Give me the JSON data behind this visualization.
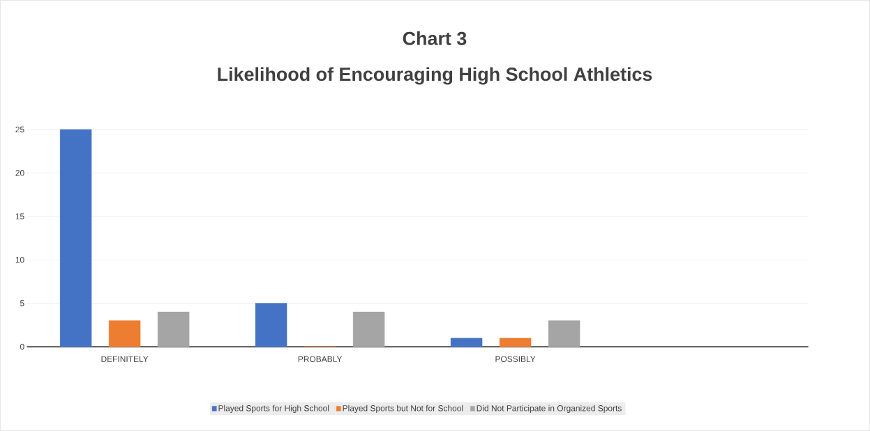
{
  "chart_data": {
    "type": "bar",
    "title": "Chart 3",
    "subtitle": "Likelihood of Encouraging High School Athletics",
    "categories": [
      "DEFINITELY",
      "PROBABLY",
      "POSSIBLY"
    ],
    "series": [
      {
        "name": "Played Sports for High School",
        "color": "#4472c4",
        "values": [
          25,
          5,
          1
        ]
      },
      {
        "name": "Played Sports but Not for School",
        "color": "#ed7d31",
        "values": [
          3,
          0,
          1
        ]
      },
      {
        "name": "Did Not Participate in Organized Sports",
        "color": "#a5a5a5",
        "values": [
          4,
          4,
          3
        ]
      }
    ],
    "ylim": [
      0,
      25
    ],
    "yticks": [
      0,
      5,
      10,
      15,
      20,
      25
    ],
    "grid": "y",
    "legend": "bottom"
  }
}
